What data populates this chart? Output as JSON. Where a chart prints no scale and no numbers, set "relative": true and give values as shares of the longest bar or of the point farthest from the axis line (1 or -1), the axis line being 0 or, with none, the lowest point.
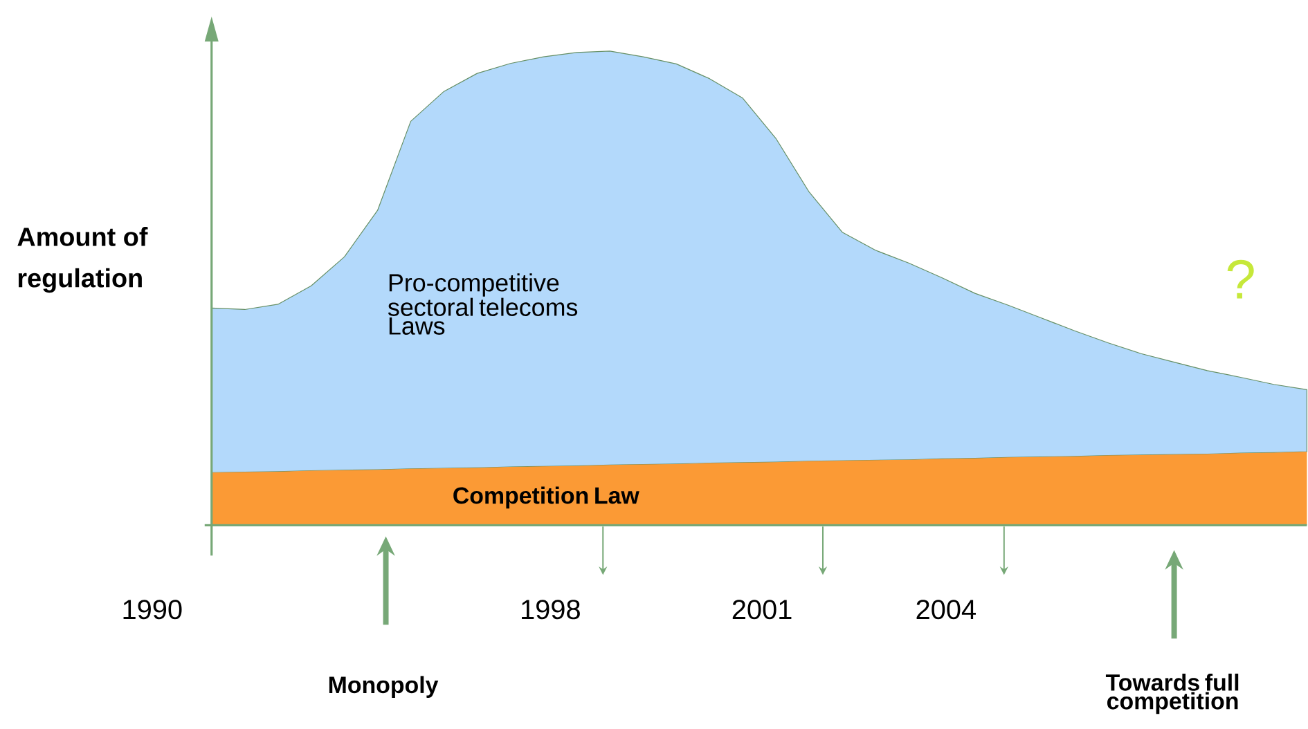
{
  "chart_data": {
    "type": "area",
    "relative": true,
    "stacked": true,
    "ylabel": "Amount of regulation",
    "categories": [
      null,
      null,
      null,
      null,
      null,
      null,
      null,
      null,
      null,
      null,
      null,
      null,
      null,
      null,
      null,
      null,
      null,
      null,
      null,
      null,
      null,
      null,
      null,
      null,
      null,
      null,
      null,
      null,
      null,
      null,
      null,
      null,
      null,
      null
    ],
    "series": [
      {
        "name": "Competition Law",
        "color": "#fb9a35",
        "values": [
          0.111,
          0.112,
          0.113,
          0.115,
          0.116,
          0.117,
          0.119,
          0.12,
          0.121,
          0.123,
          0.124,
          0.125,
          0.127,
          0.128,
          0.129,
          0.131,
          0.132,
          0.133,
          0.135,
          0.136,
          0.137,
          0.138,
          0.14,
          0.141,
          0.143,
          0.144,
          0.145,
          0.147,
          0.148,
          0.149,
          0.15,
          0.152,
          0.153,
          0.155
        ]
      },
      {
        "name": "Pro-competitive sectoral telecoms Laws",
        "color": "#b3d9fb",
        "values": [
          0.347,
          0.343,
          0.353,
          0.39,
          0.45,
          0.547,
          0.733,
          0.795,
          0.832,
          0.851,
          0.864,
          0.872,
          0.873,
          0.86,
          0.844,
          0.811,
          0.769,
          0.683,
          0.568,
          0.482,
          0.443,
          0.415,
          0.382,
          0.348,
          0.321,
          0.293,
          0.265,
          0.238,
          0.214,
          0.195,
          0.176,
          0.16,
          0.144,
          0.131
        ]
      }
    ],
    "annotations": [
      "1990",
      "1998",
      "2001",
      "2004",
      "Monopoly",
      "Towards full competition",
      "?"
    ]
  }
}
